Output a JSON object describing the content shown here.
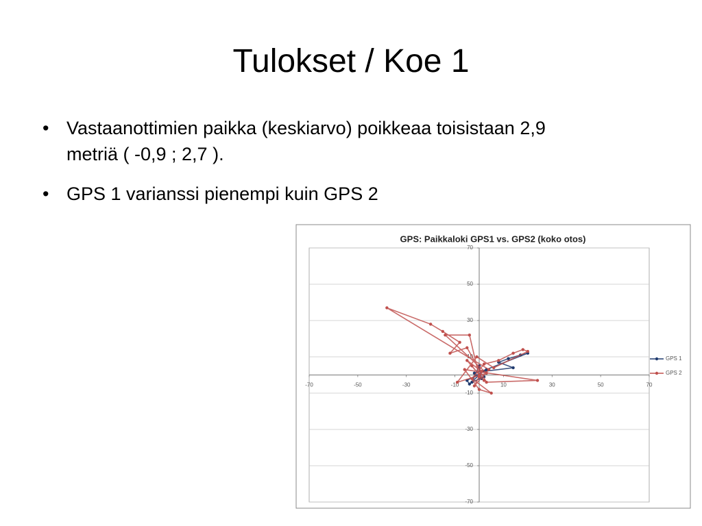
{
  "slide": {
    "title": "Tulokset / Koe 1",
    "bullets": [
      "Vastaanottimien paikka (keskiarvo) poikkeaa toisistaan 2,9 metriä ( -0,9 ; 2,7 ).",
      "GPS 1 varianssi pienempi kuin GPS 2"
    ]
  },
  "chart_data": {
    "type": "scatter",
    "title": "GPS: Paikkaloki GPS1 vs. GPS2 (koko otos)",
    "xlim": [
      -70,
      70
    ],
    "ylim": [
      -70,
      70
    ],
    "xticks": [
      -70,
      -50,
      -30,
      -10,
      10,
      30,
      50,
      70
    ],
    "yticks": [
      -70,
      -50,
      -30,
      -10,
      10,
      30,
      50,
      70
    ],
    "grid": true,
    "legend": "right",
    "series": [
      {
        "name": "GPS 1",
        "color": "#1f3a6e",
        "x": [
          0,
          -4,
          -5,
          2,
          14,
          8,
          12,
          17,
          20,
          3,
          -2,
          1,
          0,
          -3,
          2
        ],
        "y": [
          0,
          -5,
          -3,
          2,
          4,
          7,
          9,
          11,
          12,
          3,
          1,
          -2,
          5,
          -4,
          -1
        ]
      },
      {
        "name": "GPS 2",
        "color": "#c0504d",
        "x": [
          0,
          -3,
          2,
          -5,
          1,
          -2,
          4,
          -38,
          -20,
          -15,
          -8,
          -12,
          -5,
          3,
          24,
          -6,
          0,
          5,
          -3,
          2,
          8,
          14,
          18,
          20,
          6,
          -1,
          -9,
          3,
          -14,
          -4,
          0
        ],
        "y": [
          0,
          5,
          -3,
          8,
          2,
          -6,
          3,
          37,
          28,
          24,
          18,
          12,
          15,
          -4,
          -3,
          3,
          -8,
          -10,
          -2,
          6,
          8,
          12,
          14,
          13,
          4,
          10,
          -4,
          1,
          22,
          22,
          -1
        ]
      }
    ]
  }
}
